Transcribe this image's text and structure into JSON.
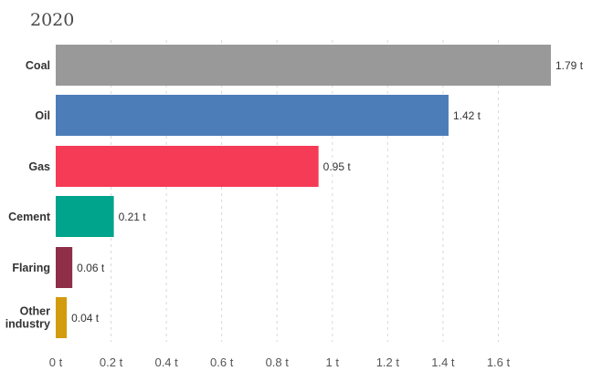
{
  "chart_data": {
    "type": "bar",
    "orientation": "horizontal",
    "title": "2020",
    "categories": [
      "Coal",
      "Oil",
      "Gas",
      "Cement",
      "Flaring",
      "Other industry"
    ],
    "values": [
      1.79,
      1.42,
      0.95,
      0.21,
      0.06,
      0.04
    ],
    "value_labels": [
      "1.79 t",
      "1.42 t",
      "0.95 t",
      "0.21 t",
      "0.06 t",
      "0.04 t"
    ],
    "colors": [
      "#999999",
      "#4c7db8",
      "#f53b55",
      "#00a38b",
      "#8e2f47",
      "#d39b0e"
    ],
    "x_ticks": [
      0,
      0.2,
      0.4,
      0.6,
      0.8,
      1,
      1.2,
      1.4,
      1.6
    ],
    "x_tick_labels": [
      "0 t",
      "0.2 t",
      "0.4 t",
      "0.6 t",
      "0.8 t",
      "1 t",
      "1.2 t",
      "1.4 t",
      "1.6 t"
    ],
    "xlim": [
      0,
      1.79
    ],
    "grid": true
  }
}
